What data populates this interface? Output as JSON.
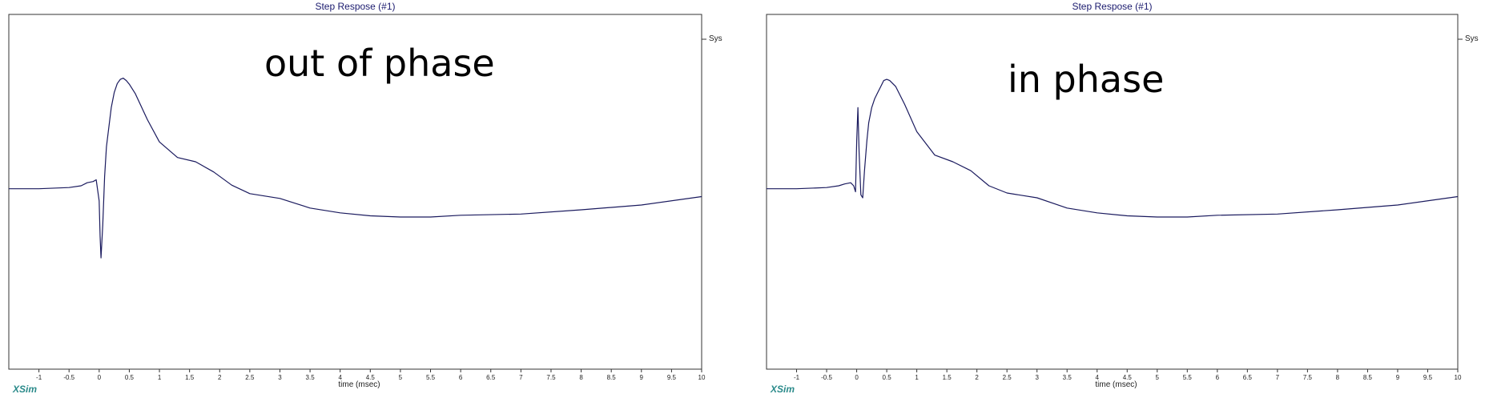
{
  "chart_data": [
    {
      "type": "line",
      "title": "Step Respose (#1)",
      "xlabel": "time (msec)",
      "ylabel": "",
      "xlim": [
        -1.5,
        10
      ],
      "ylim": [
        -3,
        2.9
      ],
      "xticks": [
        -1,
        -0.5,
        0,
        0.5,
        1,
        1.5,
        2,
        2.5,
        3,
        3.5,
        4,
        4.5,
        5,
        5.5,
        6,
        6.5,
        7,
        7.5,
        8,
        8.5,
        9,
        9.5,
        10
      ],
      "grid": false,
      "legend_position": "top-right",
      "annotation": "out of phase",
      "series": [
        {
          "name": "Sys",
          "color": "#1a1a5e",
          "x": [
            -1.5,
            -1.0,
            -0.5,
            -0.3,
            -0.2,
            -0.1,
            -0.05,
            0.0,
            0.015,
            0.03,
            0.06,
            0.09,
            0.12,
            0.2,
            0.25,
            0.3,
            0.35,
            0.4,
            0.45,
            0.5,
            0.6,
            0.8,
            1.0,
            1.3,
            1.6,
            1.9,
            2.2,
            2.5,
            3.0,
            3.5,
            4.0,
            4.5,
            5.0,
            5.5,
            6.0,
            7.0,
            8.0,
            9.0,
            10.0
          ],
          "y": [
            0.0,
            0.0,
            0.02,
            0.05,
            0.1,
            0.12,
            0.15,
            -0.2,
            -0.8,
            -1.15,
            -0.6,
            0.2,
            0.7,
            1.35,
            1.6,
            1.75,
            1.82,
            1.84,
            1.8,
            1.74,
            1.58,
            1.15,
            0.78,
            0.52,
            0.45,
            0.28,
            0.06,
            -0.08,
            -0.16,
            -0.32,
            -0.4,
            -0.45,
            -0.47,
            -0.47,
            -0.44,
            -0.42,
            -0.35,
            -0.27,
            -0.13
          ]
        }
      ]
    },
    {
      "type": "line",
      "title": "Step Respose (#1)",
      "xlabel": "time (msec)",
      "ylabel": "",
      "xlim": [
        -1.5,
        10
      ],
      "ylim": [
        -3,
        2.9
      ],
      "xticks": [
        -1,
        -0.5,
        0,
        0.5,
        1,
        1.5,
        2,
        2.5,
        3,
        3.5,
        4,
        4.5,
        5,
        5.5,
        6,
        6.5,
        7,
        7.5,
        8,
        8.5,
        9,
        9.5,
        10
      ],
      "grid": false,
      "legend_position": "top-right",
      "annotation": "in phase",
      "series": [
        {
          "name": "Sys",
          "color": "#1a1a5e",
          "x": [
            -1.5,
            -1.0,
            -0.5,
            -0.3,
            -0.2,
            -0.1,
            -0.05,
            -0.02,
            0.0,
            0.02,
            0.04,
            0.07,
            0.1,
            0.13,
            0.17,
            0.2,
            0.25,
            0.3,
            0.35,
            0.4,
            0.45,
            0.5,
            0.55,
            0.65,
            0.8,
            1.0,
            1.3,
            1.6,
            1.9,
            2.2,
            2.5,
            3.0,
            3.5,
            4.0,
            4.5,
            5.0,
            5.5,
            6.0,
            7.0,
            8.0,
            9.0,
            10.0
          ],
          "y": [
            0.0,
            0.0,
            0.02,
            0.05,
            0.08,
            0.1,
            0.05,
            -0.05,
            0.8,
            1.35,
            0.6,
            -0.1,
            -0.15,
            0.3,
            0.8,
            1.1,
            1.35,
            1.5,
            1.6,
            1.7,
            1.8,
            1.82,
            1.8,
            1.7,
            1.4,
            0.95,
            0.56,
            0.45,
            0.3,
            0.05,
            -0.07,
            -0.15,
            -0.32,
            -0.4,
            -0.45,
            -0.47,
            -0.47,
            -0.44,
            -0.42,
            -0.35,
            -0.27,
            -0.13
          ]
        }
      ]
    }
  ],
  "footer": {
    "brand": "XSim"
  }
}
